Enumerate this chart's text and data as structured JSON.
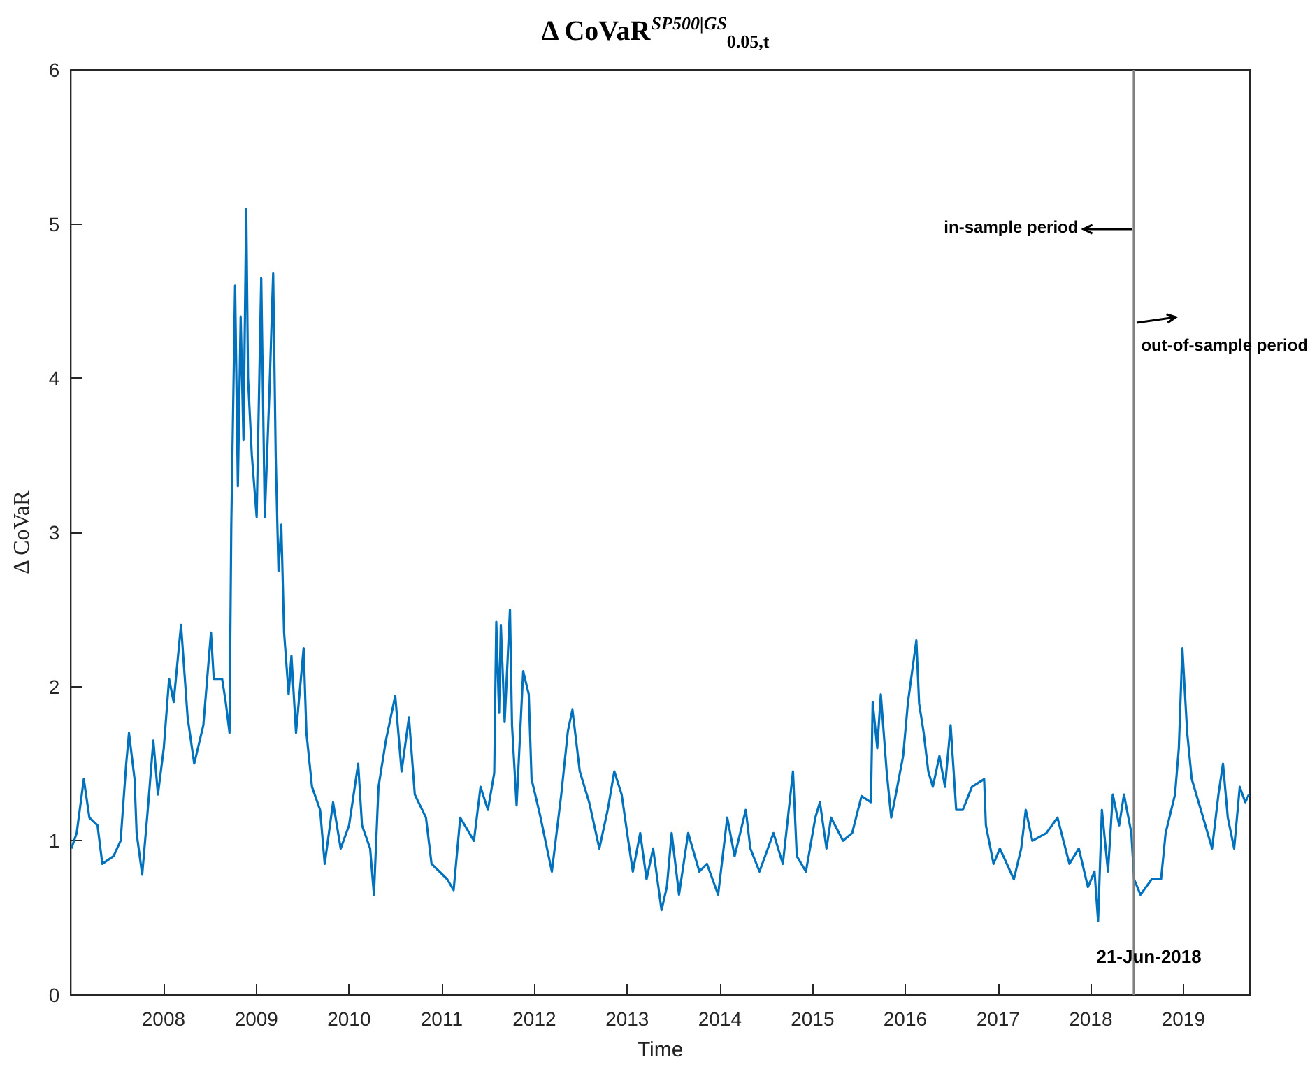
{
  "chart_data": {
    "type": "line",
    "title": "Δ CoVaR$^{SP500|GS}$$_{0.05,t}$",
    "xlabel": "Time",
    "ylabel": "Δ CoVaR",
    "xlim": [
      "2007-01-01",
      "2019-09-20"
    ],
    "xticks": [
      "2008",
      "2009",
      "2010",
      "2011",
      "2012",
      "2013",
      "2014",
      "2015",
      "2016",
      "2017",
      "2018",
      "2019"
    ],
    "ylim": [
      0,
      6
    ],
    "yticks": [
      0,
      1,
      2,
      3,
      4,
      5,
      6
    ],
    "ref_lines": [
      {
        "axis": "x",
        "value": "2018-06-21",
        "label": "21-Jun-2018",
        "color": "#808080"
      }
    ],
    "annotations": [
      {
        "text": "in-sample period",
        "x": "2018-06-21",
        "y": 4.97
      },
      {
        "text": "out-of-sample period",
        "x": "2018-06-21",
        "y": 4.36
      }
    ],
    "x": [
      "2007-01-03",
      "2007-01-24",
      "2007-02-21",
      "2007-03-15",
      "2007-04-16",
      "2007-05-05",
      "2007-06-18",
      "2007-07-16",
      "2007-08-07",
      "2007-08-18",
      "2007-09-09",
      "2007-09-17",
      "2007-10-09",
      "2007-10-31",
      "2007-11-22",
      "2007-12-10",
      "2008-01-02",
      "2008-01-23",
      "2008-02-10",
      "2008-03-10",
      "2008-04-05",
      "2008-05-01",
      "2008-06-06",
      "2008-07-06",
      "2008-07-17",
      "2008-08-19",
      "2008-09-02",
      "2008-09-17",
      "2008-09-24",
      "2008-10-09",
      "2008-10-20",
      "2008-10-31",
      "2008-11-11",
      "2008-11-22",
      "2008-11-29",
      "2008-12-14",
      "2009-01-02",
      "2009-01-20",
      "2009-02-03",
      "2009-02-21",
      "2009-03-08",
      "2009-03-18",
      "2009-03-29",
      "2009-04-09",
      "2009-04-20",
      "2009-05-08",
      "2009-05-19",
      "2009-06-06",
      "2009-07-06",
      "2009-07-17",
      "2009-08-08",
      "2009-09-09",
      "2009-09-27",
      "2009-10-30",
      "2009-11-29",
      "2010-01-01",
      "2010-02-06",
      "2010-02-21",
      "2010-03-25",
      "2010-04-09",
      "2010-04-27",
      "2010-05-26",
      "2010-07-02",
      "2010-07-27",
      "2010-08-25",
      "2010-09-17",
      "2010-10-31",
      "2010-11-22",
      "2011-01-23",
      "2011-02-17",
      "2011-03-15",
      "2011-05-08",
      "2011-06-03",
      "2011-07-02",
      "2011-07-27",
      "2011-08-04",
      "2011-08-15",
      "2011-08-22",
      "2011-09-06",
      "2011-09-27",
      "2011-10-05",
      "2011-10-23",
      "2011-11-18",
      "2011-12-10",
      "2011-12-21",
      "2012-01-23",
      "2012-03-10",
      "2012-04-16",
      "2012-05-12",
      "2012-05-30",
      "2012-06-28",
      "2012-08-04",
      "2012-09-13",
      "2012-10-16",
      "2012-11-11",
      "2012-12-10",
      "2013-01-05",
      "2013-01-23",
      "2013-02-21",
      "2013-03-18",
      "2013-04-13",
      "2013-05-16",
      "2013-06-06",
      "2013-06-25",
      "2013-07-24",
      "2013-08-29",
      "2013-10-12",
      "2013-11-11",
      "2013-12-25",
      "2014-01-30",
      "2014-02-28",
      "2014-04-13",
      "2014-05-01",
      "2014-06-06",
      "2014-07-31",
      "2014-09-06",
      "2014-10-16",
      "2014-10-31",
      "2014-12-06",
      "2015-01-12",
      "2015-01-30",
      "2015-02-25",
      "2015-03-15",
      "2015-05-01",
      "2015-06-06",
      "2015-07-13",
      "2015-08-19",
      "2015-08-26",
      "2015-09-13",
      "2015-09-27",
      "2015-10-20",
      "2015-11-07",
      "2015-11-25",
      "2015-12-24",
      "2016-01-12",
      "2016-02-14",
      "2016-02-25",
      "2016-03-14",
      "2016-04-01",
      "2016-04-19",
      "2016-05-15",
      "2016-06-06",
      "2016-06-28",
      "2016-07-20",
      "2016-08-15",
      "2016-09-20",
      "2016-11-07",
      "2016-11-14",
      "2016-12-14",
      "2017-01-08",
      "2017-03-04",
      "2017-04-02",
      "2017-04-20",
      "2017-05-16",
      "2017-07-10",
      "2017-08-23",
      "2017-10-09",
      "2017-11-15",
      "2017-12-21",
      "2018-01-16",
      "2018-01-30",
      "2018-02-14",
      "2018-03-10",
      "2018-03-29",
      "2018-04-23",
      "2018-05-12",
      "2018-06-10",
      "2018-06-21",
      "2018-07-16",
      "2018-08-29",
      "2018-10-05",
      "2018-10-23",
      "2018-11-29",
      "2018-12-14",
      "2018-12-28",
      "2019-01-16",
      "2019-02-03",
      "2019-03-11",
      "2019-04-24",
      "2019-05-19",
      "2019-06-06",
      "2019-06-25",
      "2019-07-20",
      "2019-08-11",
      "2019-09-02",
      "2019-09-16"
    ],
    "series": [
      {
        "color": "#0072bd",
        "values": [
          0.95,
          1.05,
          1.4,
          1.15,
          1.1,
          0.85,
          0.9,
          1.0,
          1.5,
          1.7,
          1.4,
          1.05,
          0.78,
          1.2,
          1.65,
          1.3,
          1.6,
          2.05,
          1.9,
          2.4,
          1.8,
          1.5,
          1.75,
          2.35,
          2.05,
          2.05,
          1.9,
          1.7,
          3.05,
          4.6,
          3.3,
          4.4,
          3.6,
          5.1,
          4.0,
          3.5,
          3.1,
          4.65,
          3.1,
          3.9,
          4.68,
          3.5,
          2.75,
          3.05,
          2.35,
          1.95,
          2.2,
          1.7,
          2.25,
          1.7,
          1.35,
          1.2,
          0.85,
          1.25,
          0.95,
          1.1,
          1.5,
          1.1,
          0.95,
          0.65,
          1.35,
          1.65,
          1.94,
          1.45,
          1.8,
          1.3,
          1.15,
          0.85,
          0.75,
          0.68,
          1.15,
          1.0,
          1.35,
          1.2,
          1.44,
          2.42,
          1.83,
          2.4,
          1.77,
          2.5,
          1.75,
          1.23,
          2.1,
          1.95,
          1.4,
          1.17,
          0.8,
          1.3,
          1.71,
          1.85,
          1.45,
          1.25,
          0.95,
          1.2,
          1.45,
          1.3,
          1.0,
          0.8,
          1.05,
          0.75,
          0.95,
          0.55,
          0.7,
          1.05,
          0.65,
          1.05,
          0.8,
          0.85,
          0.65,
          1.15,
          0.9,
          1.2,
          0.95,
          0.8,
          1.05,
          0.85,
          1.45,
          0.9,
          0.8,
          1.15,
          1.25,
          0.95,
          1.15,
          1.0,
          1.05,
          1.29,
          1.25,
          1.9,
          1.6,
          1.95,
          1.45,
          1.15,
          1.3,
          1.55,
          1.9,
          2.3,
          1.89,
          1.7,
          1.45,
          1.35,
          1.55,
          1.35,
          1.75,
          1.2,
          1.2,
          1.35,
          1.4,
          1.1,
          0.85,
          0.95,
          0.75,
          0.95,
          1.2,
          1.0,
          1.05,
          1.15,
          0.85,
          0.95,
          0.7,
          0.8,
          0.48,
          1.2,
          0.8,
          1.3,
          1.1,
          1.3,
          1.05,
          0.75,
          0.65,
          0.75,
          0.75,
          1.05,
          1.3,
          1.6,
          2.25,
          1.7,
          1.4,
          1.2,
          0.95,
          1.3,
          1.5,
          1.15,
          0.95,
          1.35,
          1.25,
          1.3
        ]
      }
    ]
  }
}
